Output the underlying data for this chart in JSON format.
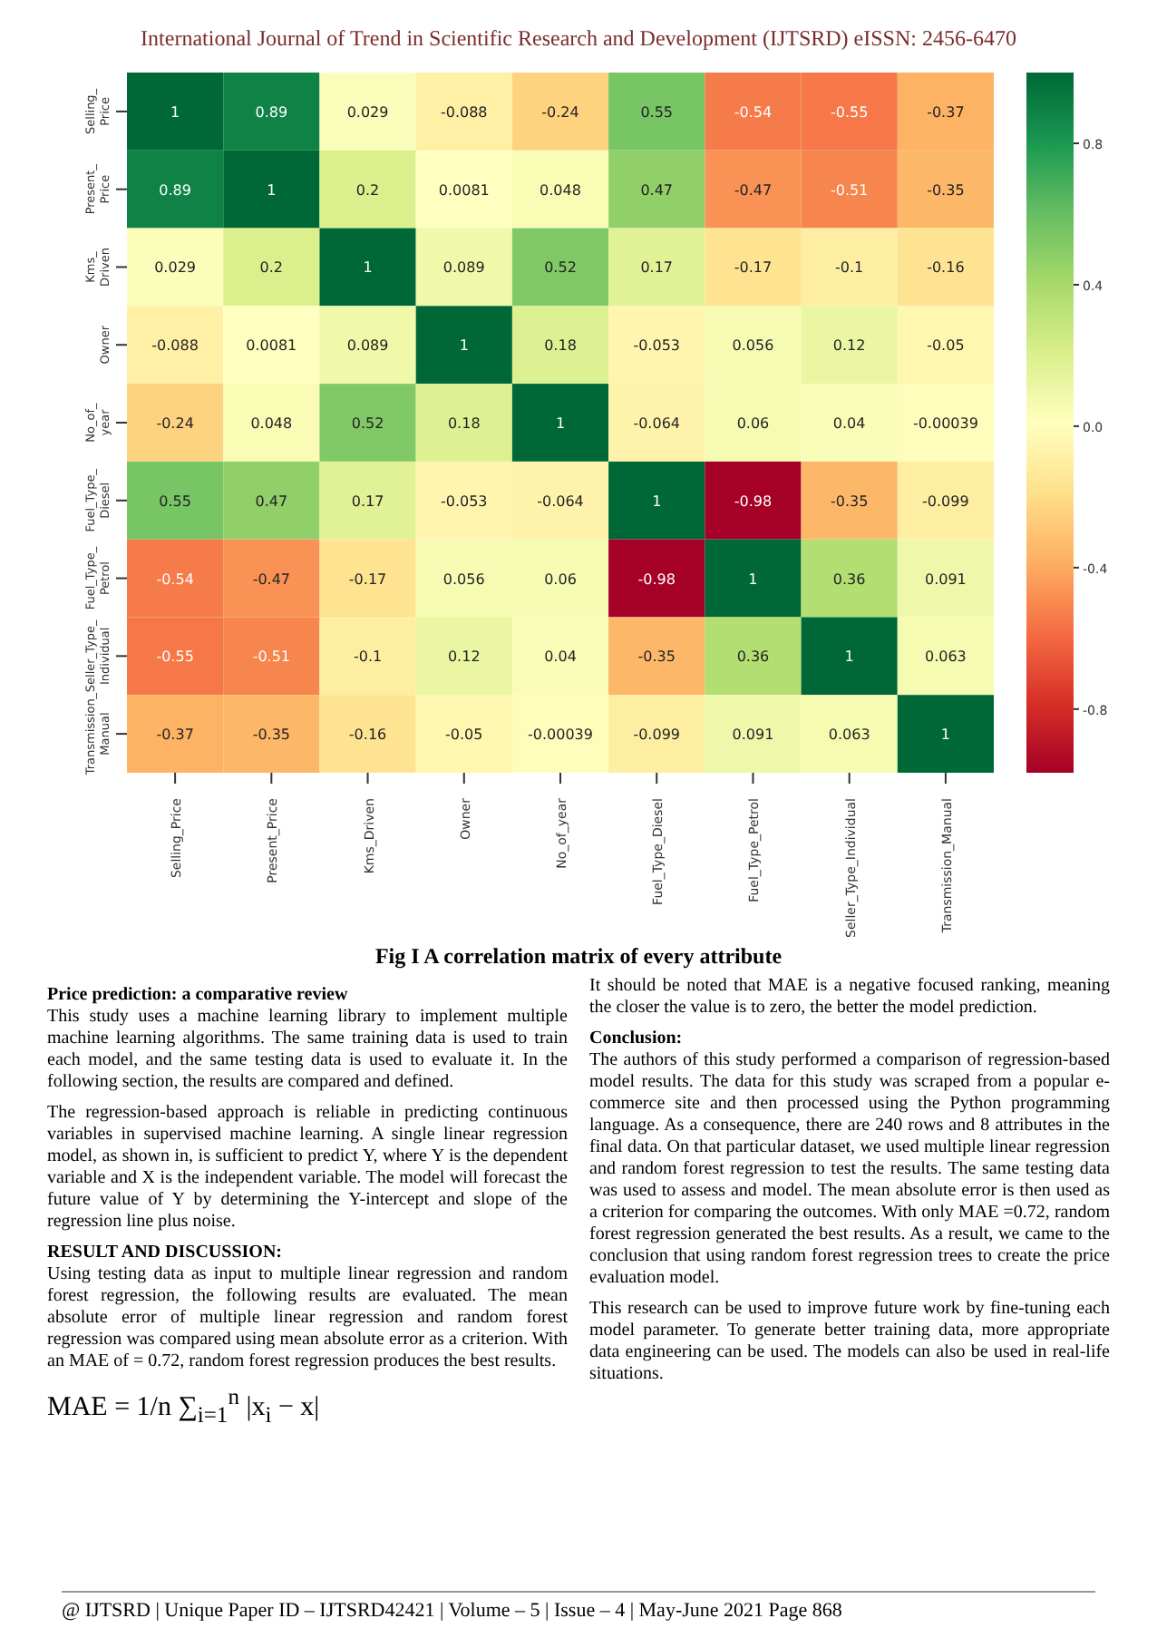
{
  "chart_data": {
    "type": "heatmap",
    "categories": [
      "Selling_Price",
      "Present_Price",
      "Kms_Driven",
      "Owner",
      "No_of_year",
      "Fuel_Type_Diesel",
      "Fuel_Type_Petrol",
      "Seller_Type_Individual",
      "Transmission_Manual"
    ],
    "y_categories": [
      "Selling_Price",
      "Present_Price",
      "Kms_Driven",
      "Owner",
      "No_of_year",
      "Fuel_Type_Diesel",
      "Fuel_Type_Petrol",
      "Seller_Type_Individual",
      "Transmission_Manual"
    ],
    "cells": [
      [
        1,
        0.89,
        0.029,
        -0.088,
        -0.24,
        0.55,
        -0.54,
        -0.55,
        -0.37
      ],
      [
        0.89,
        1,
        0.2,
        0.0081,
        0.048,
        0.47,
        -0.47,
        -0.51,
        -0.35
      ],
      [
        0.029,
        0.2,
        1,
        0.089,
        0.52,
        0.17,
        -0.17,
        -0.1,
        -0.16
      ],
      [
        -0.088,
        0.0081,
        0.089,
        1,
        0.18,
        -0.053,
        0.056,
        0.12,
        -0.05
      ],
      [
        -0.24,
        0.048,
        0.52,
        0.18,
        1,
        -0.064,
        0.06,
        0.04,
        -0.00039
      ],
      [
        0.55,
        0.47,
        0.17,
        -0.053,
        -0.064,
        1,
        -0.98,
        -0.35,
        -0.099
      ],
      [
        -0.54,
        -0.47,
        -0.17,
        0.056,
        0.06,
        -0.98,
        1,
        0.36,
        0.091
      ],
      [
        -0.55,
        -0.51,
        -0.1,
        0.12,
        0.04,
        -0.35,
        0.36,
        1,
        0.063
      ],
      [
        -0.37,
        -0.35,
        -0.16,
        -0.05,
        -0.00039,
        -0.099,
        0.091,
        0.063,
        1
      ]
    ],
    "data_labels": true,
    "clim": [
      -0.98,
      1
    ],
    "cticks": [
      {
        "value": -0.8,
        "label": "-0.8"
      },
      {
        "value": -0.4,
        "label": "-0.4"
      },
      {
        "value": 0,
        "label": "0.0"
      },
      0.4,
      0.8
    ],
    "annotations": [
      "International Journal of Trend in Scientific Research and Development (IJTSRD) eISSN: 2456-6470",
      "Fig I A correlation matrix of every attribute",
      "Price prediction: a comparative review",
      "This study uses a machine learning library to implement multiple machine learning algorithms. The same training data is used to train each model, and the same testing data is used to evaluate it. In the following section, the results are compared and defined.",
      "The regression-based approach is reliable in predicting continuous variables in supervised machine learning. A single linear regression model, as shown in, is sufficient to predict Y, where Y is the dependent variable and X is the independent variable. The model will forecast the future value of Y by determining the Y-intercept and slope of the regression line plus noise.",
      "RESULT AND DISCUSSION:",
      "Using testing data as input to multiple linear regression and random forest regression, the following results are evaluated. The mean absolute error of multiple linear regression and random forest regression was compared using mean absolute error as a criterion. With an MAE of = 0.72, random forest regression produces the best results.",
      "MAE = 1/n ∑$_{i=1}$$^{n}$ |x$_{i}$ − x|",
      "It should be noted that MAE is a negative focused ranking, meaning the closer the value is to zero, the better the model prediction.",
      "Conclusion:",
      "The authors of this study performed a comparison of regression-based model results. The data for this study was scraped from a popular e-commerce site and then processed using the Python programming language. As a consequence, there are 240 rows and 8 attributes in the final data. On that particular dataset, we used multiple linear regression and random forest regression to test the results. The same testing data was used to assess and model. The mean absolute error is then used as a criterion for comparing the outcomes. With only MAE =0.72, random forest regression generated the best results. As a result, we came to the conclusion that using random forest regression trees to create the price evaluation model.",
      "This research can be used to improve future work by fine-tuning each model parameter. To generate better training data, more appropriate data engineering can be used. The models can also be used in real-life situations.",
      "@ IJTSRD | Unique Paper ID – IJTSRD42421 | Volume – 5 | Issue – 4 | May-June 2021 Page 868"
    ]
  }
}
